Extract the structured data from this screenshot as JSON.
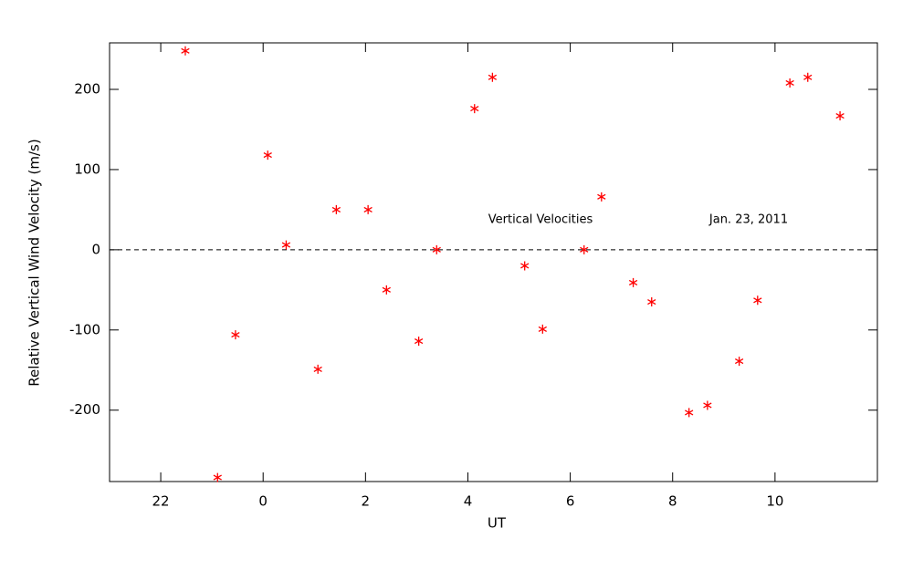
{
  "chart_data": {
    "type": "scatter",
    "xlabel": "UT",
    "ylabel": "Relative Vertical Wind Velocity (m/s)",
    "annotations": [
      "Vertical Velocities",
      "Jan. 23, 2011"
    ],
    "x": [
      -1.52,
      -0.89,
      -0.54,
      0.09,
      0.45,
      1.07,
      1.43,
      2.05,
      2.41,
      3.04,
      3.39,
      4.13,
      4.48,
      5.11,
      5.46,
      6.27,
      6.61,
      7.23,
      7.59,
      8.32,
      8.68,
      9.3,
      9.66,
      10.29,
      10.64,
      11.27
    ],
    "values": [
      248,
      -284,
      -106,
      118,
      6,
      -149,
      50,
      50,
      -50,
      -114,
      0,
      176,
      215,
      -20,
      -99,
      0,
      66,
      -41,
      -65,
      -203,
      -194,
      -139,
      -63,
      208,
      215,
      167
    ],
    "color": "#ff0000",
    "marker": "asterisk",
    "reference_line": 0,
    "xlim": [
      -3,
      12
    ],
    "xticks": [
      {
        "value": -2,
        "label": "22"
      },
      0,
      2,
      4,
      6,
      8,
      10
    ],
    "ylim": [
      -289,
      258
    ],
    "yticks": [
      -200,
      -100,
      0,
      100,
      200
    ]
  }
}
